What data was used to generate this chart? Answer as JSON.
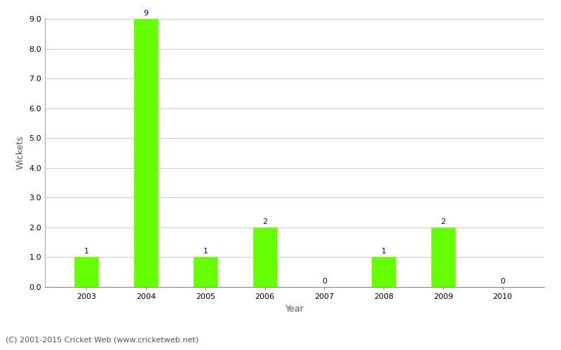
{
  "years": [
    "2003",
    "2004",
    "2005",
    "2006",
    "2007",
    "2008",
    "2009",
    "2010"
  ],
  "values": [
    1,
    9,
    1,
    2,
    0,
    1,
    2,
    0
  ],
  "bar_color": "#66ff00",
  "bar_edge_color": "#66ff00",
  "xlabel": "Year",
  "ylabel": "Wickets",
  "ylim": [
    0.0,
    9.0
  ],
  "yticks": [
    0.0,
    1.0,
    2.0,
    3.0,
    4.0,
    5.0,
    6.0,
    7.0,
    8.0,
    9.0
  ],
  "annotation_color": "#00008b",
  "annotation_fontsize": 8,
  "axis_label_fontsize": 9,
  "tick_fontsize": 8,
  "footer_text": "(C) 2001-2015 Cricket Web (www.cricketweb.net)",
  "footer_fontsize": 8,
  "footer_color": "#555555",
  "background_color": "#ffffff",
  "grid_color": "#cccccc",
  "bar_width": 0.4
}
